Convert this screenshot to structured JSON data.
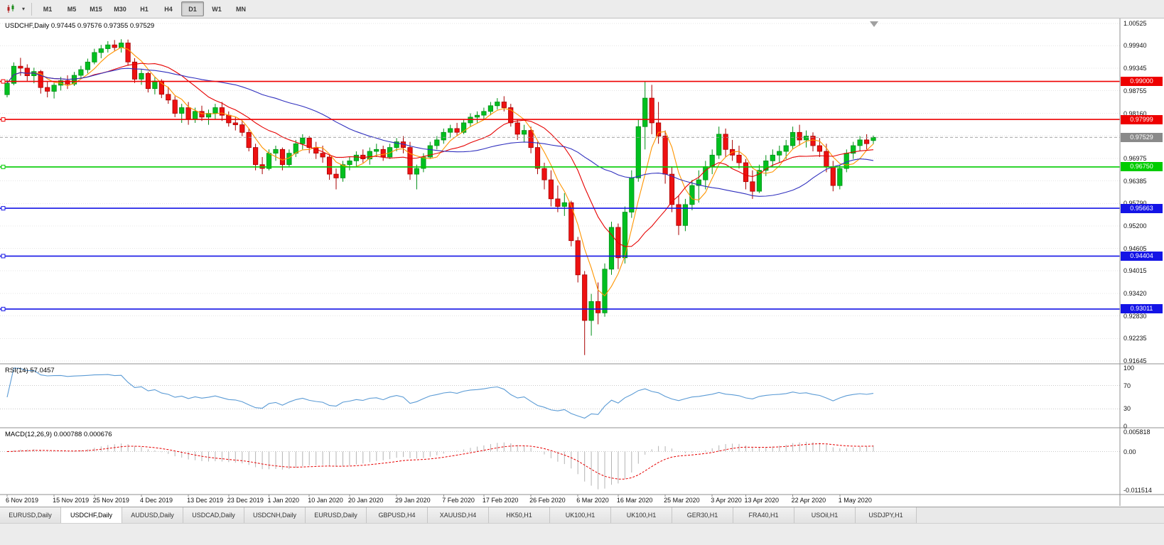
{
  "toolbar": {
    "timeframes": [
      "M1",
      "M5",
      "M15",
      "M30",
      "H1",
      "H4",
      "D1",
      "W1",
      "MN"
    ],
    "active_timeframe": "D1"
  },
  "icons": {
    "chart_type_icon": "candlestick-chart",
    "dropdown_caret": "▾",
    "shift_marker_icon": "triangle-down"
  },
  "colors": {
    "candle_up": "#00c020",
    "candle_up_border": "#008f16",
    "candle_down": "#ee1111",
    "candle_down_border": "#a80000"
  },
  "chart_data": {
    "type": "candlestick",
    "symbol": "USDCHF",
    "period": "Daily",
    "header": "USDCHF,Daily 0.97445 0.97576 0.97355 0.97529",
    "bid": {
      "price": 0.97529,
      "label": "0.97529",
      "color": "#8a8a8a"
    },
    "y_axis": {
      "max": 1.00525,
      "min": 0.91645,
      "tick_labels": [
        "1.00525",
        "0.99940",
        "0.99345",
        "0.98755",
        "0.98160",
        "0.97570",
        "0.96975",
        "0.96385",
        "0.95790",
        "0.95200",
        "0.94605",
        "0.94015",
        "0.93420",
        "0.92830",
        "0.92235",
        "0.91645"
      ]
    },
    "x_tick_labels": [
      {
        "label": "6 Nov 2019",
        "candle_index": 0
      },
      {
        "label": "15 Nov 2019",
        "candle_index": 7
      },
      {
        "label": "25 Nov 2019",
        "candle_index": 13
      },
      {
        "label": "4 Dec 2019",
        "candle_index": 20
      },
      {
        "label": "13 Dec 2019",
        "candle_index": 27
      },
      {
        "label": "23 Dec 2019",
        "candle_index": 33
      },
      {
        "label": "1 Jan 2020",
        "candle_index": 39
      },
      {
        "label": "10 Jan 2020",
        "candle_index": 45
      },
      {
        "label": "20 Jan 2020",
        "candle_index": 51
      },
      {
        "label": "29 Jan 2020",
        "candle_index": 58
      },
      {
        "label": "7 Feb 2020",
        "candle_index": 65
      },
      {
        "label": "17 Feb 2020",
        "candle_index": 71
      },
      {
        "label": "26 Feb 2020",
        "candle_index": 78
      },
      {
        "label": "6 Mar 2020",
        "candle_index": 85
      },
      {
        "label": "16 Mar 2020",
        "candle_index": 91
      },
      {
        "label": "25 Mar 2020",
        "candle_index": 98
      },
      {
        "label": "3 Apr 2020",
        "candle_index": 105
      },
      {
        "label": "13 Apr 2020",
        "candle_index": 110
      },
      {
        "label": "22 Apr 2020",
        "candle_index": 117
      },
      {
        "label": "1 May 2020",
        "candle_index": 124
      }
    ],
    "horizontal_lines": [
      {
        "price": 0.99,
        "label": "0.99000",
        "color": "#ee0000"
      },
      {
        "price": 0.97999,
        "label": "0.97999",
        "color": "#ee0000"
      },
      {
        "price": 0.9675,
        "label": "0.96750",
        "color": "#00cc00"
      },
      {
        "price": 0.95663,
        "label": "0.95663",
        "color": "#1414e6"
      },
      {
        "price": 0.94404,
        "label": "0.94404",
        "color": "#1414e6"
      },
      {
        "price": 0.93011,
        "label": "0.93011",
        "color": "#1414e6"
      }
    ],
    "moving_averages": [
      {
        "period": 5,
        "color": "#ff9500"
      },
      {
        "period": 13,
        "color": "#e60000"
      },
      {
        "period": 34,
        "color": "#2f2fbe"
      }
    ],
    "indicators": [
      {
        "type": "rsi",
        "label": "RSI(14) 57.0457",
        "period": 14,
        "value": 57.0457,
        "color": "#5b9bd5",
        "levels": [
          70,
          30
        ],
        "axis_labels": [
          "100",
          "70",
          "30",
          "0"
        ],
        "axis_values": [
          100,
          70,
          30,
          0
        ]
      },
      {
        "type": "macd",
        "label": "MACD(12,26,9) 0.000788 0.000676",
        "params": [
          12,
          26,
          9
        ],
        "values": [
          0.000788,
          0.000676
        ],
        "histogram_color": "#b4b4b4",
        "signal_color": "#e60000",
        "range": {
          "max": 0.005818,
          "min": -0.011514
        },
        "axis_labels": [
          "0.005818",
          "0.00",
          "-0.011514"
        ],
        "axis_values": [
          0.005818,
          0,
          -0.011514
        ]
      }
    ],
    "candles": [
      [
        0.9865,
        0.9905,
        0.9858,
        0.9895
      ],
      [
        0.9895,
        0.995,
        0.989,
        0.994
      ],
      [
        0.994,
        0.9962,
        0.9915,
        0.9935
      ],
      [
        0.9935,
        0.9945,
        0.99,
        0.9915
      ],
      [
        0.9915,
        0.9936,
        0.9895,
        0.9926
      ],
      [
        0.9926,
        0.993,
        0.9868,
        0.9884
      ],
      [
        0.9884,
        0.99,
        0.9858,
        0.9874
      ],
      [
        0.9874,
        0.9896,
        0.9855,
        0.989
      ],
      [
        0.989,
        0.9912,
        0.9876,
        0.9902
      ],
      [
        0.9902,
        0.9916,
        0.988,
        0.9893
      ],
      [
        0.9893,
        0.9925,
        0.9888,
        0.9916
      ],
      [
        0.9916,
        0.9941,
        0.9906,
        0.9931
      ],
      [
        0.9931,
        0.996,
        0.9921,
        0.9951
      ],
      [
        0.9951,
        0.9986,
        0.9945,
        0.9976
      ],
      [
        0.9976,
        0.9996,
        0.9961,
        0.9986
      ],
      [
        0.9986,
        1.0006,
        0.9976,
        0.9996
      ],
      [
        0.9996,
        1.0009,
        0.9981,
        0.9989
      ],
      [
        0.9989,
        1.0011,
        0.9976,
        1.0001
      ],
      [
        1.0001,
        1.001,
        0.9941,
        0.9951
      ],
      [
        0.9951,
        0.9961,
        0.9896,
        0.9906
      ],
      [
        0.9906,
        0.9931,
        0.9891,
        0.9921
      ],
      [
        0.9921,
        0.9926,
        0.9871,
        0.9881
      ],
      [
        0.9881,
        0.9911,
        0.9866,
        0.9901
      ],
      [
        0.9901,
        0.9906,
        0.9856,
        0.9866
      ],
      [
        0.9866,
        0.9886,
        0.9841,
        0.9851
      ],
      [
        0.9851,
        0.9861,
        0.9806,
        0.9816
      ],
      [
        0.9816,
        0.9841,
        0.9791,
        0.9831
      ],
      [
        0.9831,
        0.9846,
        0.9786,
        0.9801
      ],
      [
        0.9801,
        0.9831,
        0.9791,
        0.9821
      ],
      [
        0.9821,
        0.9836,
        0.9796,
        0.9806
      ],
      [
        0.9806,
        0.9826,
        0.9786,
        0.9816
      ],
      [
        0.9816,
        0.9841,
        0.9801,
        0.9831
      ],
      [
        0.9831,
        0.9846,
        0.9796,
        0.9811
      ],
      [
        0.9811,
        0.9821,
        0.9781,
        0.9791
      ],
      [
        0.9791,
        0.9806,
        0.9771,
        0.9786
      ],
      [
        0.9786,
        0.9796,
        0.9756,
        0.9766
      ],
      [
        0.9766,
        0.9776,
        0.9716,
        0.9726
      ],
      [
        0.9726,
        0.9736,
        0.9666,
        0.9681
      ],
      [
        0.9681,
        0.9701,
        0.9656,
        0.9671
      ],
      [
        0.9671,
        0.9721,
        0.9666,
        0.9711
      ],
      [
        0.9711,
        0.9731,
        0.9691,
        0.9721
      ],
      [
        0.9721,
        0.9726,
        0.9666,
        0.9681
      ],
      [
        0.9681,
        0.9721,
        0.9676,
        0.9711
      ],
      [
        0.9711,
        0.9746,
        0.9701,
        0.9736
      ],
      [
        0.9736,
        0.9761,
        0.9721,
        0.9751
      ],
      [
        0.9751,
        0.9756,
        0.9711,
        0.9726
      ],
      [
        0.9726,
        0.9741,
        0.9696,
        0.9711
      ],
      [
        0.9711,
        0.9731,
        0.9686,
        0.9701
      ],
      [
        0.9701,
        0.9706,
        0.9641,
        0.9656
      ],
      [
        0.9656,
        0.9671,
        0.9616,
        0.9646
      ],
      [
        0.9646,
        0.9691,
        0.9636,
        0.9681
      ],
      [
        0.9681,
        0.9701,
        0.9666,
        0.9691
      ],
      [
        0.9691,
        0.9716,
        0.9676,
        0.9706
      ],
      [
        0.9706,
        0.9721,
        0.9686,
        0.9696
      ],
      [
        0.9696,
        0.9726,
        0.9681,
        0.9716
      ],
      [
        0.9716,
        0.9736,
        0.9701,
        0.9721
      ],
      [
        0.9721,
        0.9731,
        0.9691,
        0.9701
      ],
      [
        0.9701,
        0.9736,
        0.9696,
        0.9726
      ],
      [
        0.9726,
        0.9751,
        0.9716,
        0.9741
      ],
      [
        0.9741,
        0.9756,
        0.9711,
        0.9726
      ],
      [
        0.9726,
        0.9741,
        0.9641,
        0.9656
      ],
      [
        0.9656,
        0.9681,
        0.9616,
        0.9671
      ],
      [
        0.9671,
        0.9711,
        0.9661,
        0.9701
      ],
      [
        0.9701,
        0.9741,
        0.9696,
        0.9731
      ],
      [
        0.9731,
        0.9756,
        0.9721,
        0.9746
      ],
      [
        0.9746,
        0.9776,
        0.9736,
        0.9766
      ],
      [
        0.9766,
        0.9786,
        0.9751,
        0.9776
      ],
      [
        0.9776,
        0.9791,
        0.9756,
        0.9766
      ],
      [
        0.9766,
        0.9801,
        0.9761,
        0.9791
      ],
      [
        0.9791,
        0.9816,
        0.9781,
        0.9806
      ],
      [
        0.9806,
        0.9821,
        0.9791,
        0.9811
      ],
      [
        0.9811,
        0.9831,
        0.9801,
        0.9821
      ],
      [
        0.9821,
        0.9846,
        0.9811,
        0.9836
      ],
      [
        0.9836,
        0.9856,
        0.9826,
        0.9846
      ],
      [
        0.9846,
        0.9861,
        0.9821,
        0.9831
      ],
      [
        0.9831,
        0.9841,
        0.9781,
        0.9791
      ],
      [
        0.9791,
        0.9801,
        0.9746,
        0.9761
      ],
      [
        0.9761,
        0.9786,
        0.9741,
        0.9771
      ],
      [
        0.9771,
        0.9781,
        0.9711,
        0.9726
      ],
      [
        0.9726,
        0.9741,
        0.9656,
        0.9671
      ],
      [
        0.9671,
        0.9686,
        0.9616,
        0.9641
      ],
      [
        0.9641,
        0.9666,
        0.9571,
        0.9591
      ],
      [
        0.9591,
        0.9626,
        0.9556,
        0.9571
      ],
      [
        0.9571,
        0.9606,
        0.9546,
        0.9581
      ],
      [
        0.9581,
        0.9586,
        0.9466,
        0.9481
      ],
      [
        0.9481,
        0.9491,
        0.9371,
        0.9391
      ],
      [
        0.9391,
        0.9401,
        0.918,
        0.9271
      ],
      [
        0.9271,
        0.9341,
        0.9231,
        0.9321
      ],
      [
        0.9321,
        0.9371,
        0.9261,
        0.9291
      ],
      [
        0.9291,
        0.9421,
        0.9281,
        0.9406
      ],
      [
        0.9406,
        0.9531,
        0.9391,
        0.9516
      ],
      [
        0.9516,
        0.9526,
        0.9406,
        0.9436
      ],
      [
        0.9436,
        0.9571,
        0.9421,
        0.9556
      ],
      [
        0.9556,
        0.9666,
        0.9541,
        0.9646
      ],
      [
        0.9646,
        0.9801,
        0.9636,
        0.9781
      ],
      [
        0.9781,
        0.9901,
        0.9721,
        0.9856
      ],
      [
        0.9856,
        0.9891,
        0.9761,
        0.9791
      ],
      [
        0.9791,
        0.9846,
        0.9736,
        0.9756
      ],
      [
        0.9756,
        0.9771,
        0.9631,
        0.9656
      ],
      [
        0.9656,
        0.9676,
        0.9556,
        0.9576
      ],
      [
        0.9576,
        0.9601,
        0.9496,
        0.9521
      ],
      [
        0.9521,
        0.9591,
        0.9506,
        0.9576
      ],
      [
        0.9576,
        0.9641,
        0.9561,
        0.9626
      ],
      [
        0.9626,
        0.9666,
        0.9581,
        0.9641
      ],
      [
        0.9641,
        0.9691,
        0.9616,
        0.9676
      ],
      [
        0.9676,
        0.9721,
        0.9656,
        0.9706
      ],
      [
        0.9706,
        0.9781,
        0.9696,
        0.9761
      ],
      [
        0.9761,
        0.9776,
        0.9701,
        0.9721
      ],
      [
        0.9721,
        0.9746,
        0.9691,
        0.9706
      ],
      [
        0.9706,
        0.9731,
        0.9671,
        0.9686
      ],
      [
        0.9686,
        0.9696,
        0.9616,
        0.9636
      ],
      [
        0.9636,
        0.9666,
        0.9591,
        0.9611
      ],
      [
        0.9611,
        0.9681,
        0.9606,
        0.9666
      ],
      [
        0.9666,
        0.9706,
        0.9651,
        0.9691
      ],
      [
        0.9691,
        0.9721,
        0.9676,
        0.9706
      ],
      [
        0.9706,
        0.9731,
        0.9686,
        0.9716
      ],
      [
        0.9716,
        0.9746,
        0.9696,
        0.9731
      ],
      [
        0.9731,
        0.9781,
        0.9721,
        0.9766
      ],
      [
        0.9766,
        0.9786,
        0.9731,
        0.9746
      ],
      [
        0.9746,
        0.9771,
        0.9726,
        0.9756
      ],
      [
        0.9756,
        0.9766,
        0.9716,
        0.9731
      ],
      [
        0.9731,
        0.9751,
        0.9701,
        0.9716
      ],
      [
        0.9716,
        0.9736,
        0.9661,
        0.9676
      ],
      [
        0.9676,
        0.9691,
        0.9611,
        0.9626
      ],
      [
        0.9626,
        0.9681,
        0.9616,
        0.9671
      ],
      [
        0.9671,
        0.9721,
        0.9661,
        0.9711
      ],
      [
        0.9711,
        0.9741,
        0.9696,
        0.9731
      ],
      [
        0.9731,
        0.9756,
        0.9716,
        0.9746
      ],
      [
        0.9746,
        0.9761,
        0.9721,
        0.9736
      ],
      [
        0.97445,
        0.97576,
        0.97355,
        0.97529
      ]
    ]
  },
  "bottom_tabs": {
    "active_index": 1,
    "items": [
      {
        "label": "EURUSD,Daily"
      },
      {
        "label": "USDCHF,Daily"
      },
      {
        "label": "AUDUSD,Daily"
      },
      {
        "label": "USDCAD,Daily"
      },
      {
        "label": "USDCNH,Daily"
      },
      {
        "label": "EURUSD,Daily"
      },
      {
        "label": "GBPUSD,H4"
      },
      {
        "label": "XAUUSD,H4"
      },
      {
        "label": "HK50,H1"
      },
      {
        "label": "UK100,H1"
      },
      {
        "label": "UK100,H1"
      },
      {
        "label": "GER30,H1"
      },
      {
        "label": "FRA40,H1"
      },
      {
        "label": "USOil,H1"
      },
      {
        "label": "USDJPY,H1"
      }
    ]
  }
}
